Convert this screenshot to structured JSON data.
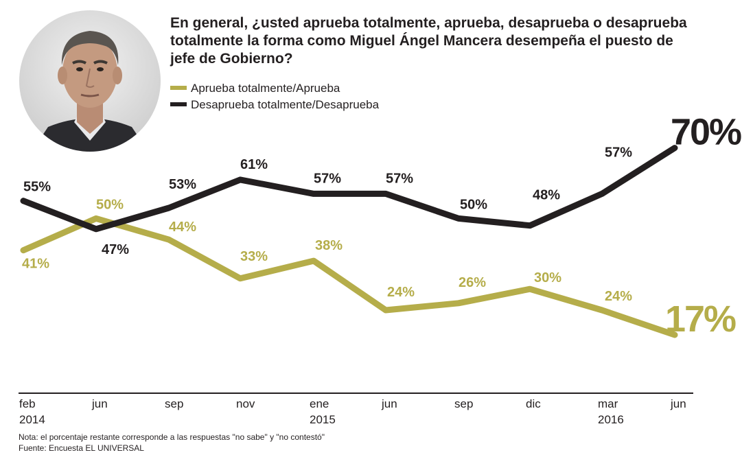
{
  "chart_data": {
    "type": "line",
    "title_lines": [
      "En general, ¿usted aprueba totalmente, aprueba, desaprueba o desaprueba",
      "totalmente la forma como Miguel Ángel Mancera desempeña el puesto de",
      "jefe de Gobierno?"
    ],
    "categories": [
      "feb",
      "jun",
      "sep",
      "nov",
      "ene",
      "jun",
      "sep",
      "dic",
      "mar",
      "jun"
    ],
    "years": [
      {
        "index": 0,
        "label": "2014"
      },
      {
        "index": 4,
        "label": "2015"
      },
      {
        "index": 8,
        "label": "2016"
      }
    ],
    "series": [
      {
        "name": "Aprueba totalmente/Aprueba",
        "color": "#b5ad4a",
        "values": [
          41,
          50,
          44,
          33,
          38,
          24,
          26,
          30,
          24,
          17
        ],
        "labels": [
          "41%",
          "50%",
          "44%",
          "33%",
          "38%",
          "24%",
          "26%",
          "30%",
          "24%",
          "17%"
        ]
      },
      {
        "name": "Desaprueba totalmente/Desaprueba",
        "color": "#231f20",
        "values": [
          55,
          47,
          53,
          61,
          57,
          57,
          50,
          48,
          57,
          70
        ],
        "labels": [
          "55%",
          "47%",
          "53%",
          "61%",
          "57%",
          "57%",
          "50%",
          "48%",
          "57%",
          "70%"
        ]
      }
    ],
    "ylim": [
      0,
      100
    ],
    "grid": false,
    "legend": "top-left",
    "notes": [
      "Nota: el porcentaje restante corresponde a las respuestas \"no sabe\" y \"no contestó\"",
      "Fuente: Encuesta EL UNIVERSAL"
    ]
  },
  "portrait": {
    "icon": "person-portrait-icon",
    "background": "#dcdcdc"
  }
}
